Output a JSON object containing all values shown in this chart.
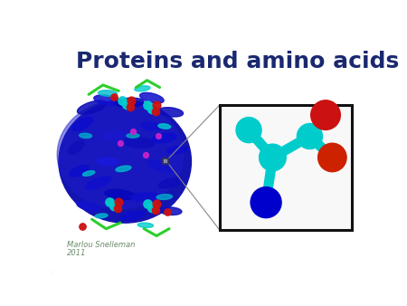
{
  "title": "Proteins and amino acids",
  "title_color": "#1a2870",
  "title_fontsize": 18,
  "title_fontweight": "bold",
  "author": "Marlou Snelleman",
  "year": "2011",
  "author_color": "#6a8a6a",
  "author_fontsize": 6.0,
  "bg_color": "#ffffff",
  "border_color": "#bbbbbb",
  "zx0": 0.535,
  "zy0": 0.18,
  "zw": 0.42,
  "zh": 0.53,
  "cyan": "#00cccc",
  "blue_atom": "#0000cc",
  "red_atom": "#cc1111",
  "orange_atom": "#cc3311",
  "connector_gray": "#aaaaaa",
  "small_sq_color": "#555577"
}
